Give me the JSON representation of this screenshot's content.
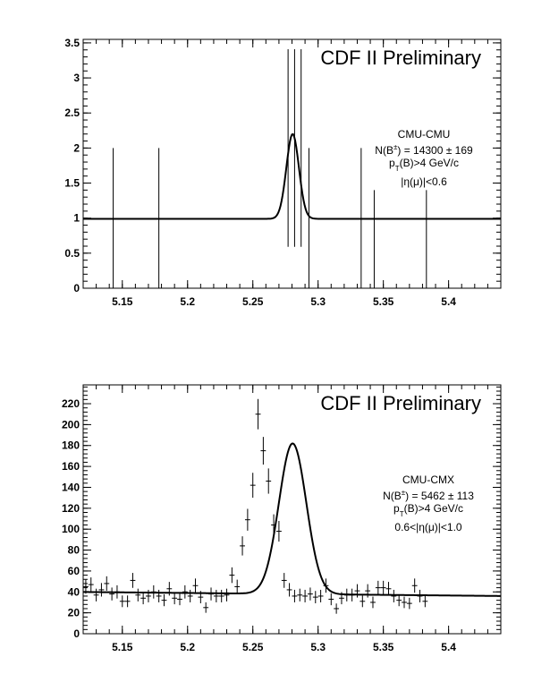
{
  "chart_data": [
    {
      "type": "scatter",
      "title": "CDF II Preliminary",
      "annotation": {
        "line1": "CMU-CMU",
        "line2_pre": "N(B",
        "line2_sup": "±",
        "line2_post": ") = 14300 ± 169",
        "line3_pre": "p",
        "line3_sub": "T",
        "line3_post": "(B)>4 GeV/c",
        "line4": "|η(μ)|<0.6"
      },
      "xlim": [
        5.12,
        5.44
      ],
      "ylim": [
        0,
        3.55
      ],
      "xticks": [
        5.15,
        5.2,
        5.25,
        5.3,
        5.35,
        5.4
      ],
      "xtick_labels": [
        "5.15",
        "5.2",
        "5.25",
        "5.3",
        "5.35",
        "5.4"
      ],
      "yticks": [
        0,
        0.5,
        1,
        1.5,
        2,
        2.5,
        3,
        3.5
      ],
      "ytick_labels": [
        "0",
        "0.5",
        "1",
        "1.5",
        "2",
        "2.5",
        "3",
        "3.5"
      ],
      "points": [
        {
          "x": 5.143,
          "y": 1,
          "err": 1
        },
        {
          "x": 5.178,
          "y": 1,
          "err": 1
        },
        {
          "x": 5.277,
          "y": 2,
          "err": 1.41
        },
        {
          "x": 5.282,
          "y": 2,
          "err": 1.41
        },
        {
          "x": 5.287,
          "y": 2,
          "err": 1.41
        },
        {
          "x": 5.293,
          "y": 1,
          "err": 1
        },
        {
          "x": 5.333,
          "y": 1,
          "err": 1
        },
        {
          "x": 5.343,
          "y": 0.5,
          "err": 0.9
        },
        {
          "x": 5.383,
          "y": 0.5,
          "err": 0.9
        }
      ],
      "fit": {
        "baseline": 0.99,
        "amplitude": 1.21,
        "mean": 5.2805,
        "sigma": 0.0048
      }
    },
    {
      "type": "scatter",
      "title": "CDF II Preliminary",
      "annotation": {
        "line1": "CMU-CMX",
        "line2_pre": "N(B",
        "line2_sup": "±",
        "line2_post": ") = 5462 ± 113",
        "line3_pre": "p",
        "line3_sub": "T",
        "line3_post": "(B)>4 GeV/c",
        "line4": "0.6<|η(μ)|<1.0"
      },
      "xlim": [
        5.12,
        5.44
      ],
      "ylim": [
        0,
        238
      ],
      "xticks": [
        5.15,
        5.2,
        5.25,
        5.3,
        5.35,
        5.4
      ],
      "xtick_labels": [
        "5.15",
        "5.2",
        "5.25",
        "5.3",
        "5.35",
        "5.4"
      ],
      "yticks": [
        0,
        20,
        40,
        60,
        80,
        100,
        120,
        140,
        160,
        180,
        200,
        220
      ],
      "ytick_labels": [
        "0",
        "20",
        "40",
        "60",
        "80",
        "100",
        "120",
        "140",
        "160",
        "180",
        "200",
        "220"
      ],
      "bin_width": 0.004,
      "x_start": 5.122,
      "values": [
        45,
        47,
        37,
        42,
        48,
        38,
        40,
        31,
        31,
        51,
        37,
        34,
        36,
        40,
        36,
        32,
        43,
        34,
        33,
        40,
        36,
        46,
        35,
        25,
        38,
        36,
        36,
        37,
        56,
        45,
        84,
        109,
        142,
        210,
        175,
        146,
        104,
        98,
        51,
        42,
        36,
        37,
        36,
        38,
        35,
        36,
        46,
        33,
        24,
        34,
        37,
        37,
        41,
        31,
        41,
        30,
        44,
        44,
        43,
        36,
        32,
        30,
        29,
        46,
        36,
        31
      ],
      "fit": {
        "baseline": 38,
        "slope": -12,
        "amplitude": 144,
        "mean": 5.2805,
        "sigma": 0.0105
      }
    }
  ]
}
